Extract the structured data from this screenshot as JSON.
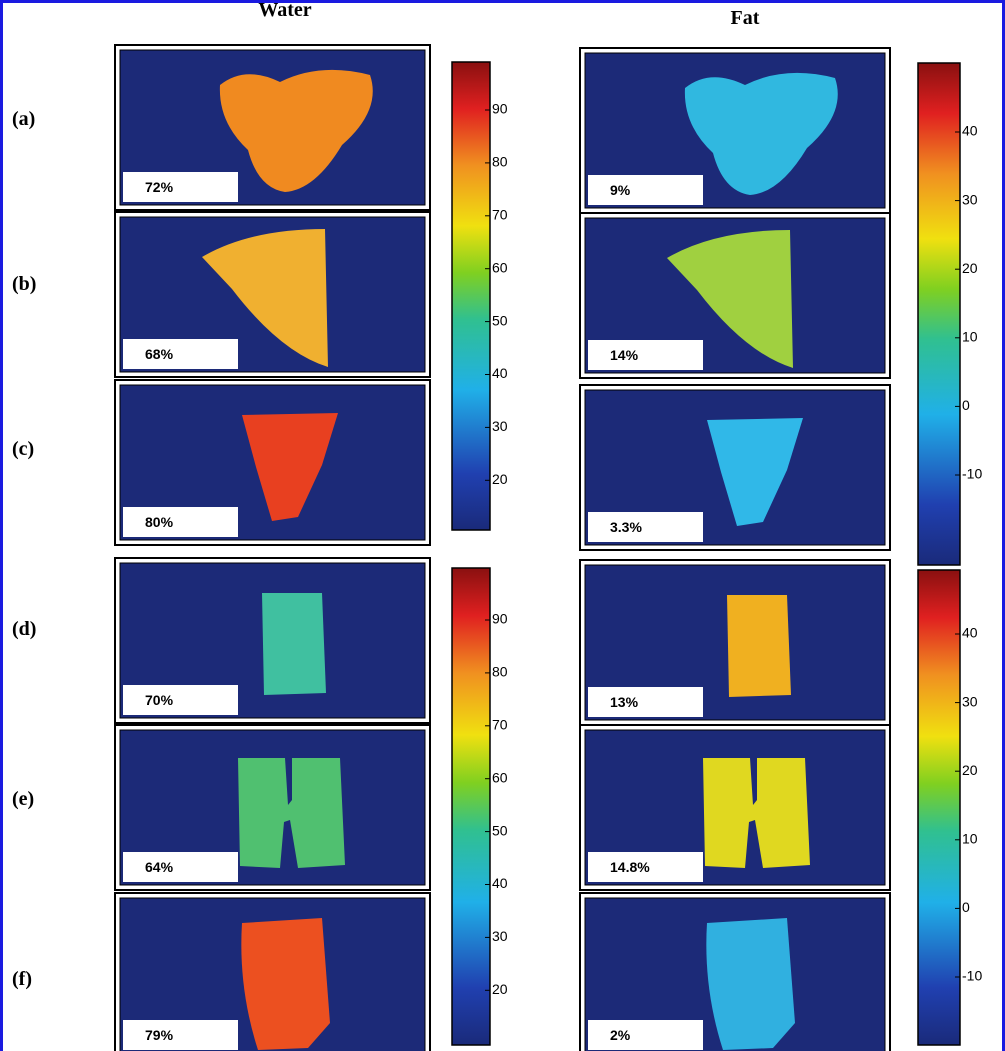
{
  "columns": [
    "Water",
    "Fat"
  ],
  "rows": [
    {
      "label": "(a)",
      "water": "72%",
      "fat": "9%"
    },
    {
      "label": "(b)",
      "water": "68%",
      "fat": "14%"
    },
    {
      "label": "(c)",
      "water": "80%",
      "fat": "3.3%"
    },
    {
      "label": "(d)",
      "water": "70%",
      "fat": "13%"
    },
    {
      "label": "(e)",
      "water": "64%",
      "fat": "14.8%"
    },
    {
      "label": "(f)",
      "water": "79%",
      "fat": "2%"
    }
  ],
  "colorbars": {
    "water": {
      "ticks": [
        90,
        80,
        70,
        60,
        50,
        40,
        30,
        20
      ]
    },
    "fat": {
      "ticks": [
        40,
        30,
        20,
        10,
        0,
        -10
      ]
    }
  }
}
